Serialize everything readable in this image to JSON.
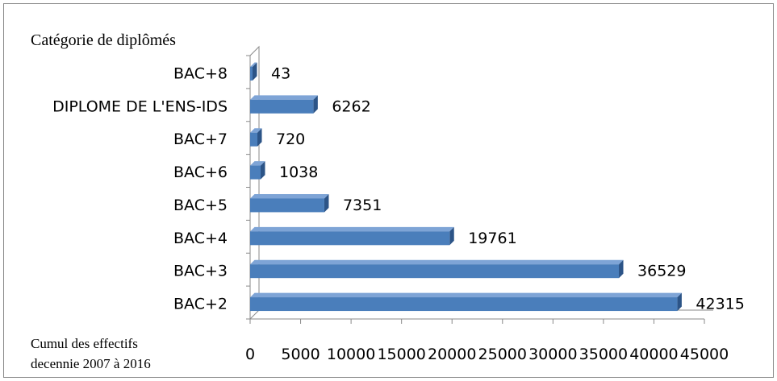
{
  "chart_data": {
    "type": "bar",
    "orientation": "horizontal",
    "effect": "3d",
    "categories": [
      "BAC+8",
      "DIPLOME DE L'ENS-IDS",
      "BAC+7",
      "BAC+6",
      "BAC+5",
      "BAC+4",
      "BAC+3",
      "BAC+2"
    ],
    "values": [
      43,
      6262,
      720,
      1038,
      7351,
      19761,
      36529,
      42315
    ],
    "data_labels": [
      "43",
      "6262",
      "720",
      "1038",
      "7351",
      "19761",
      "36529",
      "42315"
    ],
    "ylabel": "Catégorie de diplômés",
    "xlabel": [
      "Cumul des effectifs",
      "decennie 2007 à 2016"
    ],
    "xlim": [
      0,
      45000
    ],
    "xticks": [
      "0",
      "5000",
      "10000",
      "15000",
      "20000",
      "25000",
      "30000",
      "35000",
      "40000",
      "45000"
    ],
    "grid": false,
    "legend": "none",
    "colors": {
      "bar_front": "#4a7ebb",
      "bar_top": "#7ea4d6",
      "bar_side": "#2c5487",
      "axis": "#8a8a8a"
    }
  }
}
